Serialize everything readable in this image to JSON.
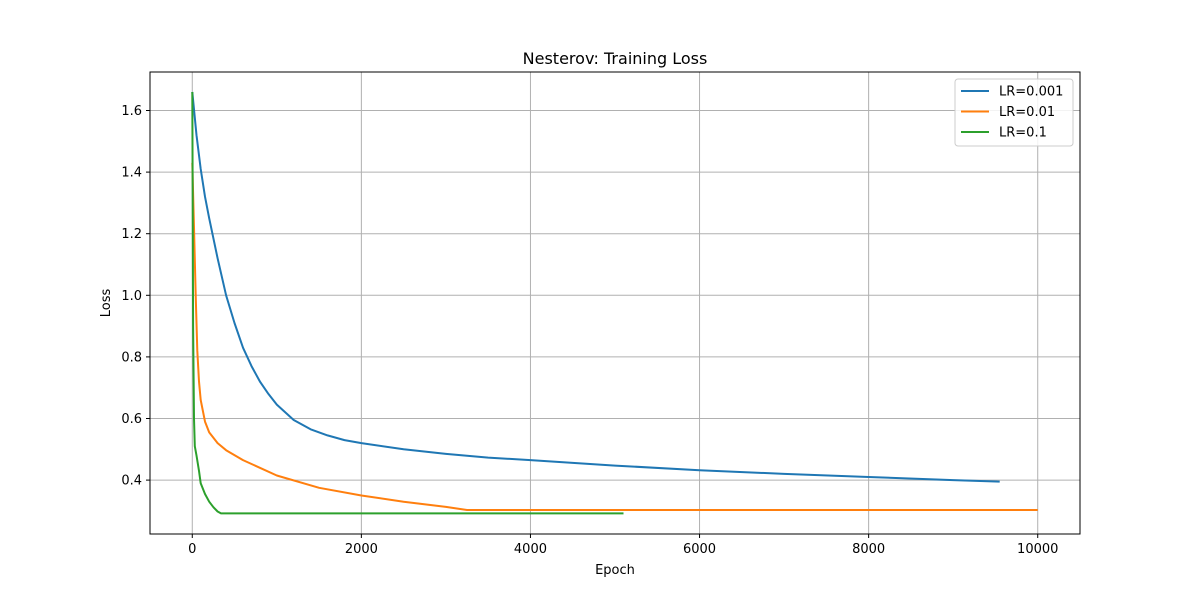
{
  "chart_data": {
    "type": "line",
    "title": "Nesterov: Training Loss",
    "xlabel": "Epoch",
    "ylabel": "Loss",
    "xlim": [
      -500,
      10500
    ],
    "ylim": [
      0.225,
      1.725
    ],
    "xticks": [
      0,
      2000,
      4000,
      6000,
      8000,
      10000
    ],
    "yticks": [
      0.4,
      0.6,
      0.8,
      1.0,
      1.2,
      1.4,
      1.6
    ],
    "xtick_labels": [
      "0",
      "2000",
      "4000",
      "6000",
      "8000",
      "10000"
    ],
    "ytick_labels": [
      "0.4",
      "0.6",
      "0.8",
      "1.0",
      "1.2",
      "1.4",
      "1.6"
    ],
    "grid": true,
    "legend_position": "top-right",
    "series": [
      {
        "name": "LR=0.001",
        "color": "#1f77b4",
        "x": [
          0,
          50,
          100,
          150,
          200,
          300,
          400,
          500,
          600,
          700,
          800,
          900,
          1000,
          1200,
          1400,
          1600,
          1800,
          2000,
          2500,
          3000,
          3500,
          4000,
          5000,
          6000,
          7000,
          8000,
          9000,
          9550
        ],
        "y": [
          1.66,
          1.52,
          1.41,
          1.32,
          1.25,
          1.12,
          1.0,
          0.91,
          0.83,
          0.77,
          0.72,
          0.68,
          0.645,
          0.595,
          0.565,
          0.545,
          0.53,
          0.52,
          0.5,
          0.485,
          0.473,
          0.465,
          0.447,
          0.432,
          0.42,
          0.41,
          0.4,
          0.395
        ]
      },
      {
        "name": "LR=0.01",
        "color": "#ff7f0e",
        "x": [
          0,
          20,
          40,
          60,
          80,
          100,
          150,
          200,
          300,
          400,
          600,
          800,
          1000,
          1500,
          2000,
          2500,
          3000,
          3250,
          4000,
          6000,
          8000,
          10000
        ],
        "y": [
          1.43,
          1.22,
          1.0,
          0.82,
          0.72,
          0.66,
          0.59,
          0.555,
          0.52,
          0.497,
          0.465,
          0.44,
          0.415,
          0.375,
          0.35,
          0.33,
          0.313,
          0.303,
          0.303,
          0.303,
          0.303,
          0.303
        ]
      },
      {
        "name": "LR=0.1",
        "color": "#2ca02c",
        "x": [
          0,
          5,
          10,
          20,
          30,
          50,
          80,
          100,
          150,
          200,
          250,
          300,
          340,
          400,
          1000,
          3000,
          5100
        ],
        "y": [
          1.66,
          1.3,
          0.9,
          0.6,
          0.51,
          0.48,
          0.43,
          0.39,
          0.355,
          0.33,
          0.312,
          0.298,
          0.292,
          0.292,
          0.292,
          0.292,
          0.292
        ]
      }
    ]
  }
}
